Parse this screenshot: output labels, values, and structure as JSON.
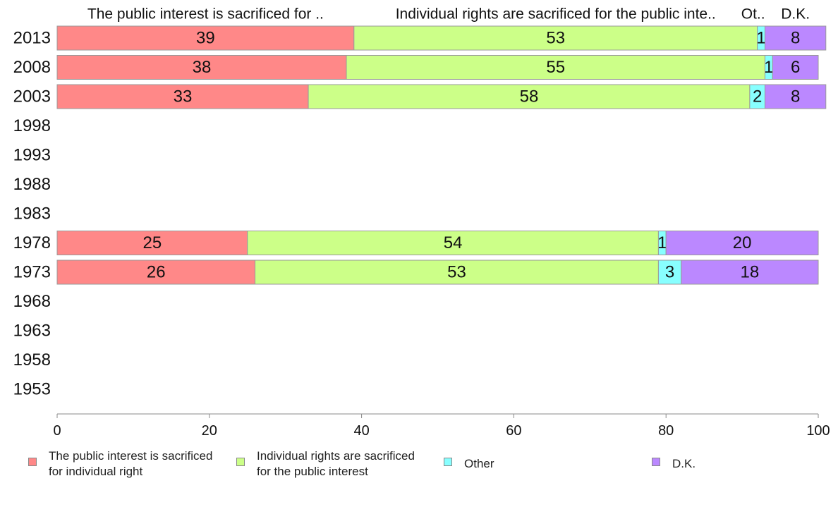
{
  "chart_data": {
    "type": "bar",
    "orientation": "horizontal",
    "stacked": true,
    "categories": [
      "2013",
      "2008",
      "2003",
      "1998",
      "1993",
      "1988",
      "1983",
      "1978",
      "1973",
      "1968",
      "1963",
      "1958",
      "1953"
    ],
    "series": [
      {
        "name": "The public interest is sacrificed for individual right",
        "header": "The public interest is sacrificed for ..",
        "color": "#ff8888",
        "values": [
          39,
          38,
          33,
          null,
          null,
          null,
          null,
          25,
          26,
          null,
          null,
          null,
          null
        ]
      },
      {
        "name": "Individual rights are sacrificed for the public interest",
        "header": "Individual rights are sacrificed for the public inte..",
        "color": "#ccff88",
        "values": [
          53,
          55,
          58,
          null,
          null,
          null,
          null,
          54,
          53,
          null,
          null,
          null,
          null
        ]
      },
      {
        "name": "Other",
        "header": "Ot..",
        "color": "#88ffff",
        "values": [
          1,
          1,
          2,
          null,
          null,
          null,
          null,
          1,
          3,
          null,
          null,
          null,
          null
        ]
      },
      {
        "name": "D.K.",
        "header": "D.K.",
        "color": "#bb88ff",
        "values": [
          8,
          6,
          8,
          null,
          null,
          null,
          null,
          20,
          18,
          null,
          null,
          null,
          null
        ]
      }
    ],
    "xlim": [
      0,
      100
    ],
    "xticks": [
      "0",
      "20",
      "40",
      "60",
      "80",
      "100"
    ],
    "legend": {
      "placement": "bottom",
      "labels": [
        "The public interest is sacrificed\nfor individual right",
        "Individual rights are sacrificed\nfor the public interest",
        "Other",
        "D.K."
      ]
    }
  }
}
